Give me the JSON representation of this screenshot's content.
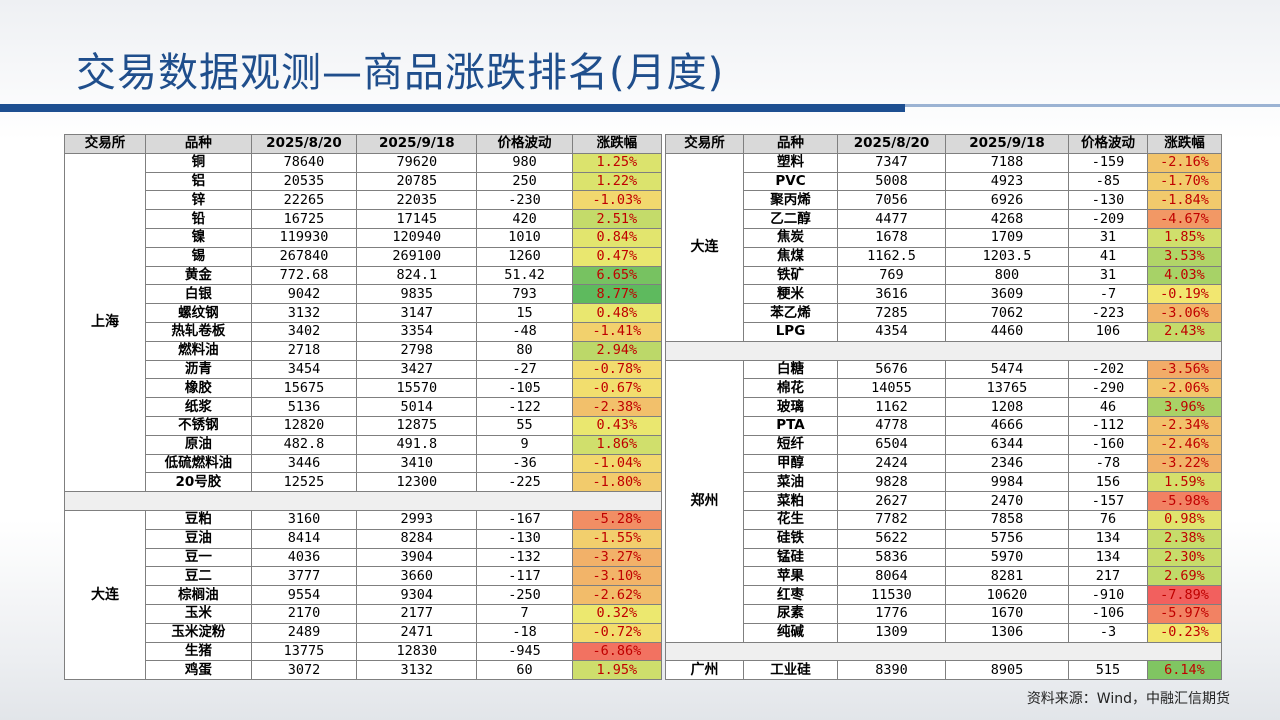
{
  "title": "交易数据观测—商品涨跌排名(月度)",
  "source": "资料来源：Wind，中融汇信期货",
  "colors": {
    "title": "#1f4e8c",
    "header_bg": "#d9d9d9",
    "change_text": "#c00000",
    "bar": "#1d4f91"
  },
  "columns": [
    "交易所",
    "品种",
    "2025/8/20",
    "2025/9/18",
    "价格波动",
    "涨跌幅"
  ],
  "left_groups": [
    {
      "exchange": "上海",
      "rows": [
        [
          "铜",
          "78640",
          "79620",
          "980",
          "1.25%"
        ],
        [
          "铝",
          "20535",
          "20785",
          "250",
          "1.22%"
        ],
        [
          "锌",
          "22265",
          "22035",
          "-230",
          "-1.03%"
        ],
        [
          "铅",
          "16725",
          "17145",
          "420",
          "2.51%"
        ],
        [
          "镍",
          "119930",
          "120940",
          "1010",
          "0.84%"
        ],
        [
          "锡",
          "267840",
          "269100",
          "1260",
          "0.47%"
        ],
        [
          "黄金",
          "772.68",
          "824.1",
          "51.42",
          "6.65%"
        ],
        [
          "白银",
          "9042",
          "9835",
          "793",
          "8.77%"
        ],
        [
          "螺纹钢",
          "3132",
          "3147",
          "15",
          "0.48%"
        ],
        [
          "热轧卷板",
          "3402",
          "3354",
          "-48",
          "-1.41%"
        ],
        [
          "燃料油",
          "2718",
          "2798",
          "80",
          "2.94%"
        ],
        [
          "沥青",
          "3454",
          "3427",
          "-27",
          "-0.78%"
        ],
        [
          "橡胶",
          "15675",
          "15570",
          "-105",
          "-0.67%"
        ],
        [
          "纸浆",
          "5136",
          "5014",
          "-122",
          "-2.38%"
        ],
        [
          "不锈钢",
          "12820",
          "12875",
          "55",
          "0.43%"
        ],
        [
          "原油",
          "482.8",
          "491.8",
          "9",
          "1.86%"
        ],
        [
          "低硫燃料油",
          "3446",
          "3410",
          "-36",
          "-1.04%"
        ],
        [
          "20号胶",
          "12525",
          "12300",
          "-225",
          "-1.80%"
        ]
      ]
    },
    {
      "exchange": "大连",
      "rows": [
        [
          "豆粕",
          "3160",
          "2993",
          "-167",
          "-5.28%"
        ],
        [
          "豆油",
          "8414",
          "8284",
          "-130",
          "-1.55%"
        ],
        [
          "豆一",
          "4036",
          "3904",
          "-132",
          "-3.27%"
        ],
        [
          "豆二",
          "3777",
          "3660",
          "-117",
          "-3.10%"
        ],
        [
          "棕榈油",
          "9554",
          "9304",
          "-250",
          "-2.62%"
        ],
        [
          "玉米",
          "2170",
          "2177",
          "7",
          "0.32%"
        ],
        [
          "玉米淀粉",
          "2489",
          "2471",
          "-18",
          "-0.72%"
        ],
        [
          "生猪",
          "13775",
          "12830",
          "-945",
          "-6.86%"
        ],
        [
          "鸡蛋",
          "3072",
          "3132",
          "60",
          "1.95%"
        ]
      ]
    }
  ],
  "right_groups": [
    {
      "exchange": "大连",
      "rows": [
        [
          "塑料",
          "7347",
          "7188",
          "-159",
          "-2.16%"
        ],
        [
          "PVC",
          "5008",
          "4923",
          "-85",
          "-1.70%"
        ],
        [
          "聚丙烯",
          "7056",
          "6926",
          "-130",
          "-1.84%"
        ],
        [
          "乙二醇",
          "4477",
          "4268",
          "-209",
          "-4.67%"
        ],
        [
          "焦炭",
          "1678",
          "1709",
          "31",
          "1.85%"
        ],
        [
          "焦煤",
          "1162.5",
          "1203.5",
          "41",
          "3.53%"
        ],
        [
          "铁矿",
          "769",
          "800",
          "31",
          "4.03%"
        ],
        [
          "粳米",
          "3616",
          "3609",
          "-7",
          "-0.19%"
        ],
        [
          "苯乙烯",
          "7285",
          "7062",
          "-223",
          "-3.06%"
        ],
        [
          "LPG",
          "4354",
          "4460",
          "106",
          "2.43%"
        ]
      ]
    },
    {
      "exchange": "郑州",
      "rows": [
        [
          "白糖",
          "5676",
          "5474",
          "-202",
          "-3.56%"
        ],
        [
          "棉花",
          "14055",
          "13765",
          "-290",
          "-2.06%"
        ],
        [
          "玻璃",
          "1162",
          "1208",
          "46",
          "3.96%"
        ],
        [
          "PTA",
          "4778",
          "4666",
          "-112",
          "-2.34%"
        ],
        [
          "短纤",
          "6504",
          "6344",
          "-160",
          "-2.46%"
        ],
        [
          "甲醇",
          "2424",
          "2346",
          "-78",
          "-3.22%"
        ],
        [
          "菜油",
          "9828",
          "9984",
          "156",
          "1.59%"
        ],
        [
          "菜粕",
          "2627",
          "2470",
          "-157",
          "-5.98%"
        ],
        [
          "花生",
          "7782",
          "7858",
          "76",
          "0.98%"
        ],
        [
          "硅铁",
          "5622",
          "5756",
          "134",
          "2.38%"
        ],
        [
          "锰硅",
          "5836",
          "5970",
          "134",
          "2.30%"
        ],
        [
          "苹果",
          "8064",
          "8281",
          "217",
          "2.69%"
        ],
        [
          "红枣",
          "11530",
          "10620",
          "-910",
          "-7.89%"
        ],
        [
          "尿素",
          "1776",
          "1670",
          "-106",
          "-5.97%"
        ],
        [
          "纯碱",
          "1309",
          "1306",
          "-3",
          "-0.23%"
        ]
      ]
    },
    {
      "exchange": "广州",
      "rows": [
        [
          "工业硅",
          "8390",
          "8905",
          "515",
          "6.14%"
        ]
      ]
    }
  ]
}
